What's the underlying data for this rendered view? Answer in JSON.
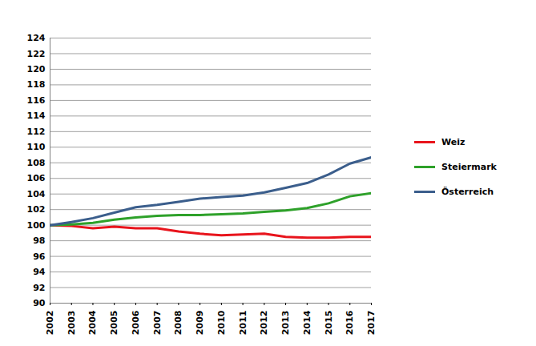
{
  "chart_data": {
    "type": "line",
    "x": [
      2002,
      2003,
      2004,
      2005,
      2006,
      2007,
      2008,
      2009,
      2010,
      2011,
      2012,
      2013,
      2014,
      2015,
      2016,
      2017
    ],
    "series": [
      {
        "name": "Weiz",
        "color": "#e8141c",
        "values": [
          100,
          99.9,
          99.6,
          99.8,
          99.6,
          99.6,
          99.2,
          98.9,
          98.7,
          98.8,
          98.9,
          98.5,
          98.4,
          98.4,
          98.5,
          98.5
        ]
      },
      {
        "name": "Steiermark",
        "color": "#2ea12a",
        "values": [
          100,
          100.1,
          100.3,
          100.7,
          101.0,
          101.2,
          101.3,
          101.3,
          101.4,
          101.5,
          101.7,
          101.9,
          102.2,
          102.8,
          103.7,
          104.1
        ]
      },
      {
        "name": "Österreich",
        "color": "#3b5e8c",
        "values": [
          100,
          100.4,
          100.9,
          101.6,
          102.3,
          102.6,
          103.0,
          103.4,
          103.6,
          103.8,
          104.2,
          104.8,
          105.4,
          106.5,
          107.9,
          108.7
        ]
      }
    ],
    "xlim": [
      2002,
      2017
    ],
    "xticks": [
      2002,
      2003,
      2004,
      2005,
      2006,
      2007,
      2008,
      2009,
      2010,
      2011,
      2012,
      2013,
      2014,
      2015,
      2016,
      2017
    ],
    "ylim": [
      90,
      124
    ],
    "yticks": [
      90,
      92,
      94,
      96,
      98,
      100,
      102,
      104,
      106,
      108,
      110,
      112,
      114,
      116,
      118,
      120,
      122,
      124
    ],
    "grid": true,
    "legend": "right"
  }
}
